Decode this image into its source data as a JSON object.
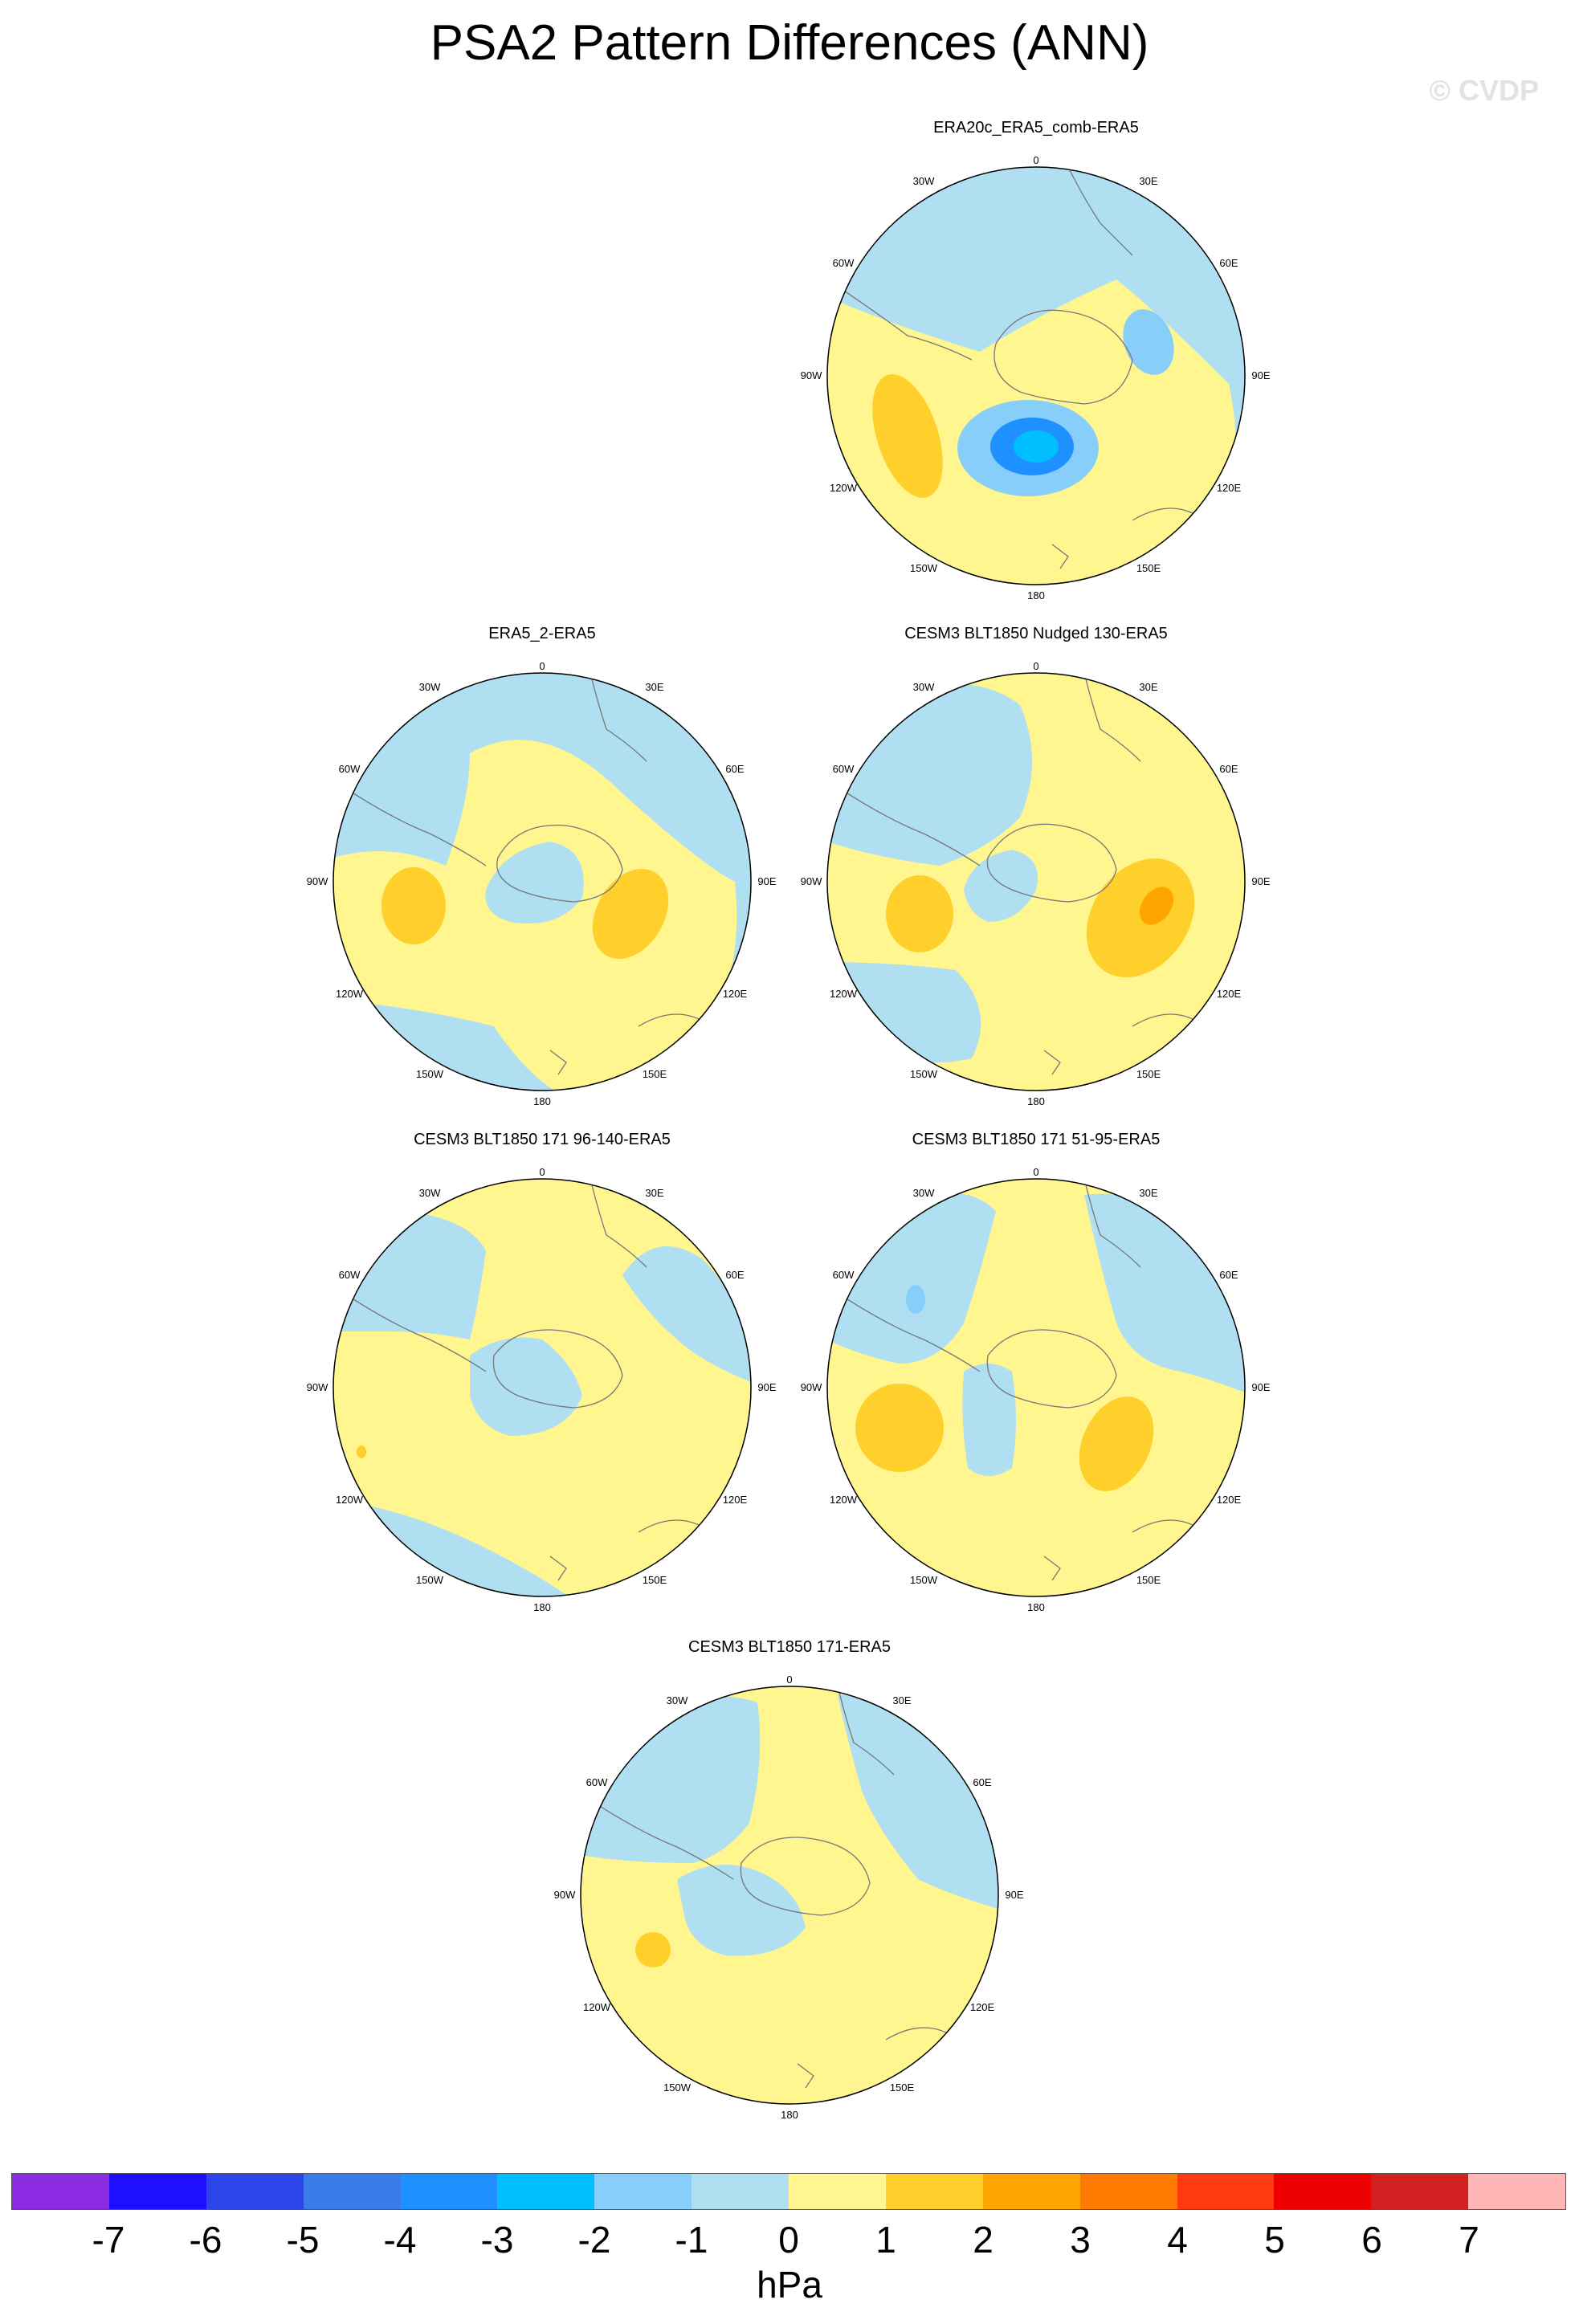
{
  "title": "PSA2 Pattern Differences (ANN)",
  "watermark": "© CVDP",
  "colorbar": {
    "unit": "hPa",
    "labels": [
      "-7",
      "-6",
      "-5",
      "-4",
      "-3",
      "-2",
      "-1",
      "0",
      "1",
      "2",
      "3",
      "4",
      "5",
      "6",
      "7"
    ],
    "colors": [
      "#8a2be2",
      "#1e10ff",
      "#2b45e8",
      "#3a7be8",
      "#1e90ff",
      "#00bfff",
      "#87cefa",
      "#b0dff2",
      "#fff68f",
      "#ffd02b",
      "#ffa500",
      "#ff7a00",
      "#ff3a10",
      "#ee0000",
      "#d22020",
      "#ffb6b6"
    ]
  },
  "map_labels": {
    "north": "0",
    "south": "180",
    "lon_30w": "30W",
    "lon_30e": "30E",
    "lon_60w": "60W",
    "lon_60e": "60E",
    "lon_90w": "90W",
    "lon_90e": "90E",
    "lon_120w": "120W",
    "lon_120e": "120E",
    "lon_150w": "150W",
    "lon_150e": "150E"
  },
  "panels": [
    {
      "title": "ERA20c_ERA5_comb-ERA5"
    },
    {
      "title": "ERA5_2-ERA5"
    },
    {
      "title": "CESM3 BLT1850 Nudged 130-ERA5"
    },
    {
      "title": "CESM3 BLT1850 171 96-140-ERA5"
    },
    {
      "title": "CESM3 BLT1850 171 51-95-ERA5"
    },
    {
      "title": "CESM3 BLT1850 171-ERA5"
    }
  ]
}
